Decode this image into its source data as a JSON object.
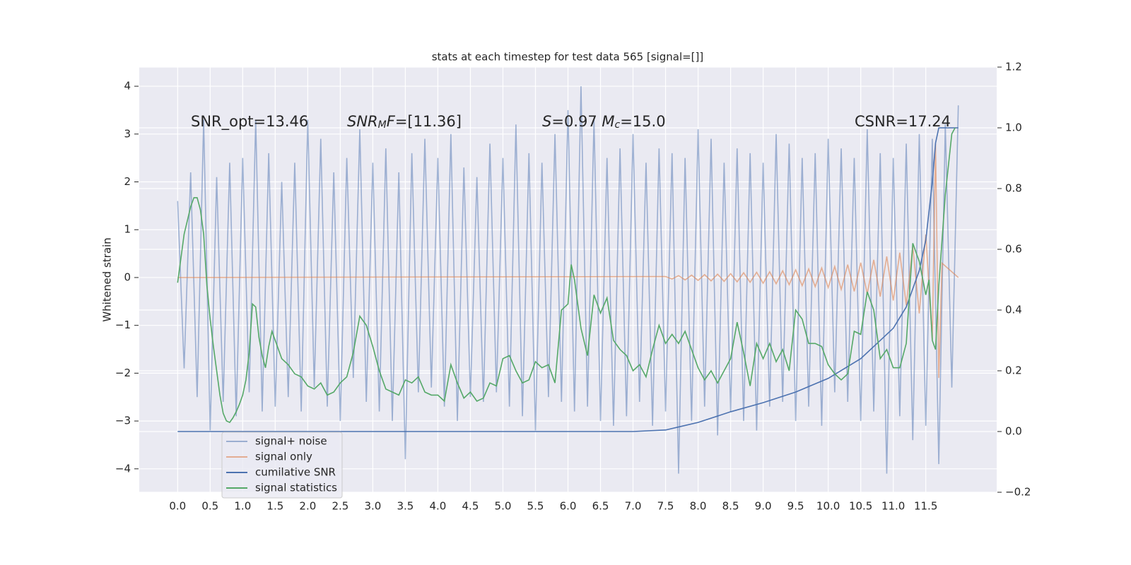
{
  "chart_data": {
    "type": "line",
    "title": "stats at each timestep for test data 565 [signal=[]]",
    "ylabel": "Whitened strain",
    "xlim": [
      -0.59,
      12.59
    ],
    "ylim": [
      -4.49,
      4.4
    ],
    "y2lim": [
      -0.2,
      1.2
    ],
    "xticks": [
      {
        "value": 0,
        "label": "0.0"
      },
      0.5,
      {
        "value": 1,
        "label": "1.0"
      },
      1.5,
      {
        "value": 2,
        "label": "2.0"
      },
      2.5,
      {
        "value": 3,
        "label": "3.0"
      },
      3.5,
      {
        "value": 4,
        "label": "4.0"
      },
      4.5,
      {
        "value": 5,
        "label": "5.0"
      },
      5.5,
      {
        "value": 6,
        "label": "6.0"
      },
      6.5,
      {
        "value": 7,
        "label": "7.0"
      },
      7.5,
      {
        "value": 8,
        "label": "8.0"
      },
      8.5,
      {
        "value": 9,
        "label": "9.0"
      },
      9.5,
      {
        "value": 10,
        "label": "10.0"
      },
      10.5,
      {
        "value": 11,
        "label": "11.0"
      },
      11.5
    ],
    "yticks": [
      {
        "value": -4,
        "label": "−4"
      },
      {
        "value": -3,
        "label": "−3"
      },
      {
        "value": -2,
        "label": "−2"
      },
      {
        "value": -1,
        "label": "−1"
      },
      0,
      1,
      2,
      3,
      4
    ],
    "y2ticks": [
      {
        "value": -0.2,
        "label": "−0.2"
      },
      {
        "value": 0,
        "label": "0.0"
      },
      0.2,
      0.4,
      0.6,
      0.8,
      {
        "value": 1,
        "label": "1.0"
      },
      1.2
    ],
    "grid": true,
    "legend": "lower left",
    "annotations": [
      [
        {
          "text": "SNR_opt=13.46"
        }
      ],
      [
        {
          "text": "SNR",
          "style": "italic"
        },
        {
          "text": "M",
          "style": "italic",
          "sub": true
        },
        {
          "text": "F",
          "style": "italic"
        },
        {
          "text": "=[11.36]"
        }
      ],
      [
        {
          "text": "S",
          "style": "italic"
        },
        {
          "text": "=0.97   "
        },
        {
          "text": "M",
          "style": "italic"
        },
        {
          "text": "c",
          "style": "italic",
          "sub": true
        },
        {
          "text": "=15.0"
        }
      ],
      [
        {
          "text": "CSNR=17.24"
        }
      ]
    ],
    "series": [
      {
        "name": "signal+ noise",
        "color": "#4c72b0",
        "opacity": 0.5,
        "axis": "y",
        "x": [
          0,
          0.1,
          0.2,
          0.3,
          0.4,
          0.5,
          0.6,
          0.7,
          0.8,
          0.9,
          1,
          1.1,
          1.2,
          1.3,
          1.4,
          1.5,
          1.6,
          1.7,
          1.8,
          1.9,
          2,
          2.1,
          2.2,
          2.3,
          2.4,
          2.5,
          2.6,
          2.7,
          2.8,
          2.9,
          3,
          3.1,
          3.2,
          3.3,
          3.4,
          3.5,
          3.6,
          3.7,
          3.8,
          3.9,
          4,
          4.1,
          4.2,
          4.3,
          4.4,
          4.5,
          4.6,
          4.7,
          4.8,
          4.9,
          5,
          5.1,
          5.2,
          5.3,
          5.4,
          5.5,
          5.6,
          5.7,
          5.8,
          5.9,
          6,
          6.1,
          6.2,
          6.3,
          6.4,
          6.5,
          6.6,
          6.7,
          6.8,
          6.9,
          7,
          7.1,
          7.2,
          7.3,
          7.4,
          7.5,
          7.6,
          7.7,
          7.8,
          7.9,
          8,
          8.1,
          8.2,
          8.3,
          8.4,
          8.5,
          8.6,
          8.7,
          8.8,
          8.9,
          9,
          9.1,
          9.2,
          9.3,
          9.4,
          9.5,
          9.6,
          9.7,
          9.8,
          9.9,
          10,
          10.1,
          10.2,
          10.3,
          10.4,
          10.5,
          10.6,
          10.7,
          10.8,
          10.9,
          11,
          11.1,
          11.2,
          11.3,
          11.4,
          11.5,
          11.6,
          11.7,
          11.8,
          11.9,
          12
        ],
        "values": [
          1.6,
          -1.9,
          2.2,
          -2.5,
          3.3,
          -3.2,
          2.1,
          -2.6,
          2.4,
          -2.9,
          2.5,
          -2.4,
          3.3,
          -2.8,
          2.6,
          -2.7,
          2.0,
          -2.5,
          2.4,
          -2.8,
          3.3,
          -2.3,
          2.9,
          -2.7,
          2.2,
          -3.0,
          2.5,
          -2.1,
          3.1,
          -2.6,
          2.4,
          -2.8,
          2.7,
          -3.0,
          2.2,
          -3.8,
          2.6,
          -2.4,
          2.9,
          -2.3,
          2.5,
          -2.7,
          3.0,
          -3.0,
          2.3,
          -2.5,
          2.1,
          -2.6,
          2.8,
          -2.4,
          2.5,
          -2.7,
          3.2,
          -2.9,
          2.6,
          -3.2,
          2.4,
          -2.5,
          3.0,
          -2.6,
          3.5,
          -2.8,
          4.0,
          -2.7,
          3.3,
          -3.0,
          2.5,
          -3.1,
          2.7,
          -2.9,
          3.0,
          -2.6,
          2.4,
          -3.1,
          2.7,
          -2.8,
          2.6,
          -4.1,
          2.5,
          -3.0,
          3.1,
          -2.7,
          2.9,
          -3.3,
          2.4,
          -2.8,
          2.7,
          -3.0,
          2.6,
          -3.2,
          2.4,
          -2.7,
          3.0,
          -2.6,
          2.8,
          -3.0,
          2.5,
          -2.7,
          2.6,
          -3.1,
          2.9,
          -2.4,
          2.7,
          -2.6,
          2.5,
          -3.0,
          3.1,
          -2.8,
          2.6,
          -4.1,
          2.5,
          -2.9,
          2.8,
          -3.4,
          3.0,
          -3.1,
          2.9,
          -3.9,
          3.2,
          -2.3,
          3.6
        ]
      },
      {
        "name": "signal only",
        "color": "#dd8452",
        "opacity": 0.6,
        "axis": "y",
        "x": [
          0,
          7.5,
          7.6,
          7.7,
          7.8,
          7.9,
          8,
          8.1,
          8.2,
          8.3,
          8.4,
          8.5,
          8.6,
          8.7,
          8.8,
          8.9,
          9,
          9.1,
          9.2,
          9.3,
          9.4,
          9.5,
          9.6,
          9.7,
          9.8,
          9.9,
          10,
          10.1,
          10.2,
          10.3,
          10.4,
          10.5,
          10.6,
          10.7,
          10.8,
          10.9,
          11,
          11.1,
          11.2,
          11.3,
          11.4,
          11.5,
          11.6,
          11.65,
          11.7,
          11.75,
          12
        ],
        "values": [
          0,
          0.02,
          -0.03,
          0.04,
          -0.05,
          0.05,
          -0.06,
          0.06,
          -0.07,
          0.07,
          -0.08,
          0.08,
          -0.09,
          0.1,
          -0.1,
          0.11,
          -0.12,
          0.12,
          -0.13,
          0.14,
          -0.15,
          0.16,
          -0.17,
          0.18,
          -0.19,
          0.2,
          -0.21,
          0.23,
          -0.25,
          0.27,
          -0.29,
          0.31,
          -0.34,
          0.37,
          -0.4,
          0.44,
          -0.48,
          0.52,
          -0.58,
          0.65,
          -0.75,
          0.9,
          -1.3,
          2.8,
          -2.1,
          0.3,
          0
        ]
      },
      {
        "name": "cumilative SNR",
        "color": "#4c72b0",
        "opacity": 1,
        "axis": "y2",
        "x": [
          0,
          7,
          7.5,
          7.7,
          8,
          8.5,
          9,
          9.5,
          10,
          10.5,
          11,
          11.2,
          11.4,
          11.5,
          11.6,
          11.65,
          11.7,
          12
        ],
        "values": [
          0,
          0,
          0.005,
          0.015,
          0.03,
          0.065,
          0.095,
          0.13,
          0.175,
          0.24,
          0.34,
          0.41,
          0.53,
          0.63,
          0.82,
          0.95,
          1,
          1
        ]
      },
      {
        "name": "signal statistics",
        "color": "#55a868",
        "opacity": 1,
        "axis": "y2",
        "x": [
          0,
          0.1,
          0.2,
          0.25,
          0.3,
          0.35,
          0.4,
          0.45,
          0.5,
          0.55,
          0.6,
          0.65,
          0.7,
          0.75,
          0.8,
          0.85,
          0.9,
          0.95,
          1,
          1.05,
          1.1,
          1.15,
          1.2,
          1.25,
          1.3,
          1.35,
          1.4,
          1.45,
          1.5,
          1.6,
          1.7,
          1.8,
          1.9,
          2,
          2.1,
          2.2,
          2.3,
          2.4,
          2.5,
          2.6,
          2.7,
          2.8,
          2.9,
          3,
          3.1,
          3.2,
          3.3,
          3.4,
          3.5,
          3.6,
          3.7,
          3.8,
          3.9,
          4,
          4.1,
          4.2,
          4.3,
          4.4,
          4.5,
          4.6,
          4.7,
          4.8,
          4.9,
          5,
          5.1,
          5.2,
          5.3,
          5.4,
          5.5,
          5.6,
          5.7,
          5.8,
          5.9,
          6,
          6.05,
          6.1,
          6.2,
          6.3,
          6.4,
          6.5,
          6.6,
          6.7,
          6.8,
          6.9,
          7,
          7.1,
          7.2,
          7.3,
          7.4,
          7.5,
          7.6,
          7.7,
          7.8,
          7.9,
          8,
          8.1,
          8.2,
          8.3,
          8.4,
          8.5,
          8.6,
          8.7,
          8.8,
          8.9,
          9,
          9.1,
          9.2,
          9.3,
          9.4,
          9.5,
          9.6,
          9.7,
          9.8,
          9.9,
          10,
          10.1,
          10.2,
          10.3,
          10.4,
          10.5,
          10.6,
          10.7,
          10.8,
          10.9,
          11,
          11.1,
          11.2,
          11.3,
          11.4,
          11.5,
          11.55,
          11.6,
          11.65,
          11.7,
          11.8,
          11.9,
          11.95
        ],
        "values": [
          0.49,
          0.65,
          0.74,
          0.77,
          0.77,
          0.73,
          0.65,
          0.48,
          0.37,
          0.28,
          0.2,
          0.12,
          0.06,
          0.035,
          0.03,
          0.045,
          0.065,
          0.09,
          0.12,
          0.17,
          0.26,
          0.42,
          0.41,
          0.31,
          0.25,
          0.21,
          0.28,
          0.33,
          0.3,
          0.24,
          0.22,
          0.19,
          0.18,
          0.15,
          0.14,
          0.16,
          0.12,
          0.13,
          0.16,
          0.18,
          0.26,
          0.38,
          0.35,
          0.28,
          0.2,
          0.14,
          0.13,
          0.12,
          0.17,
          0.16,
          0.18,
          0.13,
          0.12,
          0.12,
          0.1,
          0.22,
          0.16,
          0.11,
          0.13,
          0.1,
          0.11,
          0.16,
          0.15,
          0.24,
          0.25,
          0.2,
          0.16,
          0.17,
          0.23,
          0.21,
          0.22,
          0.16,
          0.4,
          0.42,
          0.55,
          0.5,
          0.34,
          0.25,
          0.45,
          0.39,
          0.44,
          0.3,
          0.27,
          0.25,
          0.2,
          0.22,
          0.18,
          0.27,
          0.35,
          0.29,
          0.32,
          0.29,
          0.33,
          0.27,
          0.21,
          0.17,
          0.2,
          0.16,
          0.2,
          0.24,
          0.36,
          0.26,
          0.15,
          0.29,
          0.24,
          0.29,
          0.23,
          0.27,
          0.2,
          0.4,
          0.37,
          0.29,
          0.29,
          0.28,
          0.22,
          0.19,
          0.17,
          0.19,
          0.33,
          0.32,
          0.46,
          0.4,
          0.24,
          0.27,
          0.21,
          0.21,
          0.29,
          0.62,
          0.56,
          0.45,
          0.5,
          0.3,
          0.27,
          0.48,
          0.78,
          0.98,
          1
        ]
      }
    ]
  }
}
